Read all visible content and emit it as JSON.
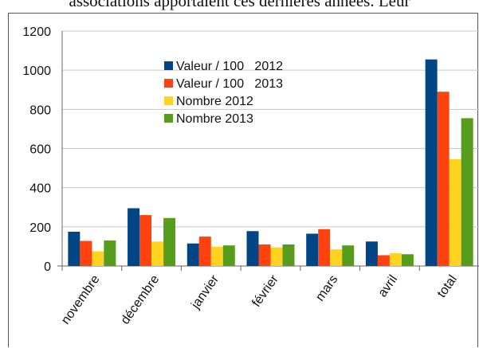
{
  "page": {
    "top_text": "associations apportaient ces dernières années. Leur"
  },
  "colors": {
    "gridline": "#c8c8c8",
    "axis": "#666666"
  },
  "chart_data": {
    "type": "bar",
    "categories": [
      "novembre",
      "décembre",
      "janvier",
      "février",
      "mars",
      "avril",
      "total"
    ],
    "ylim": [
      0,
      1200
    ],
    "yticks": [
      0,
      200,
      400,
      600,
      800,
      1000,
      1200
    ],
    "grid": true,
    "legend_position": "top-center",
    "xlabel": "",
    "ylabel": "",
    "series": [
      {
        "name": "Valeur / 100   2012",
        "color": "#004586",
        "values": [
          175,
          295,
          115,
          178,
          165,
          125,
          1055
        ]
      },
      {
        "name": "Valeur / 100   2013",
        "color": "#ff420e",
        "values": [
          128,
          260,
          150,
          110,
          188,
          55,
          890
        ]
      },
      {
        "name": "Nombre 2012",
        "color": "#ffd320",
        "values": [
          75,
          125,
          98,
          95,
          85,
          65,
          545
        ]
      },
      {
        "name": "Nombre 2013",
        "color": "#579d1c",
        "values": [
          130,
          245,
          105,
          110,
          105,
          60,
          755
        ]
      }
    ]
  }
}
